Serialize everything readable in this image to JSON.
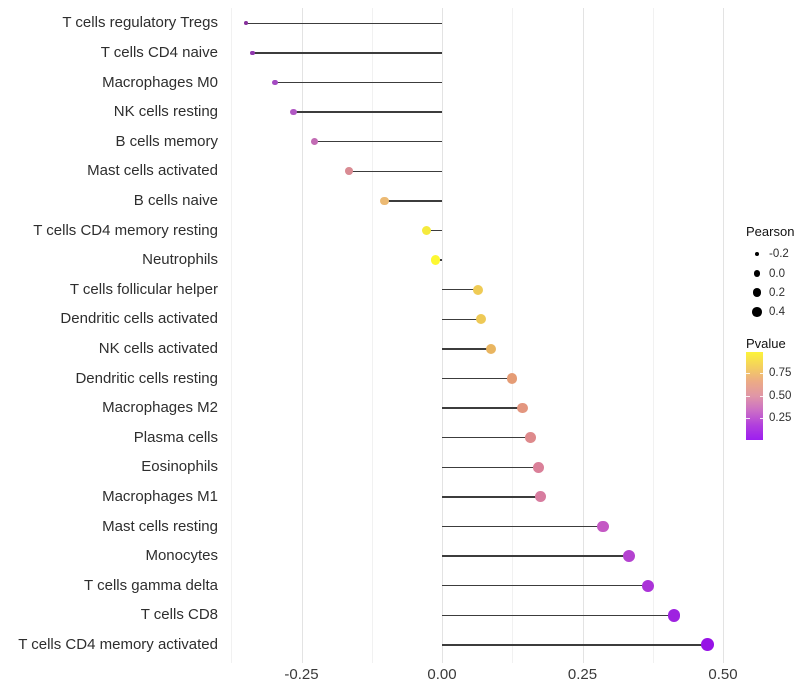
{
  "chart_data": {
    "type": "scatter",
    "subtype": "lollipop",
    "title": "",
    "xlabel": "",
    "ylabel": "",
    "grid": "on",
    "xlim": [
      -0.385,
      0.52
    ],
    "x_major_ticks": [
      -0.25,
      0.0,
      0.25,
      0.5
    ],
    "x_tick_labels": [
      "-0.25",
      "0.00",
      "0.25",
      "0.50"
    ],
    "x_minor_ticks": [
      -0.375,
      -0.125,
      0.125,
      0.375
    ],
    "categories": [
      "T cells regulatory  Tregs",
      "T cells CD4 naive",
      "Macrophages M0",
      "NK cells resting",
      "B cells memory",
      "Mast cells activated",
      "B cells naive",
      "T cells CD4 memory resting",
      "Neutrophils",
      "T cells follicular helper",
      "Dendritic cells activated",
      "NK cells activated",
      "Dendritic cells resting",
      "Macrophages M2",
      "Plasma cells",
      "Eosinophils",
      "Macrophages M1",
      "Mast cells resting",
      "Monocytes",
      "T cells gamma delta",
      "T cells CD8",
      "T cells CD4 memory activated"
    ],
    "series": [
      {
        "name": "Pearson",
        "values": [
          -0.349,
          -0.337,
          -0.297,
          -0.264,
          -0.227,
          -0.166,
          -0.102,
          -0.027,
          -0.012,
          0.064,
          0.07,
          0.087,
          0.125,
          0.143,
          0.157,
          0.171,
          0.175,
          0.286,
          0.332,
          0.366,
          0.413,
          0.472
        ]
      }
    ],
    "point_colors": [
      "#86309b",
      "#9038ae",
      "#a44ac2",
      "#b158c4",
      "#c26cb4",
      "#d98b93",
      "#ecba74",
      "#f5ea3d",
      "#fdf832",
      "#efcb55",
      "#eec956",
      "#e9b560",
      "#e59c75",
      "#e3967f",
      "#de8a8c",
      "#da8099",
      "#d77c9f",
      "#c458c4",
      "#b442d0",
      "#ab33d8",
      "#9e22e0",
      "#9712e6"
    ],
    "legend_position": "right"
  },
  "legend_pearson": {
    "title": "Pearson",
    "entries": [
      {
        "label": "-0.2",
        "value": -0.2
      },
      {
        "label": "0.0",
        "value": 0.0
      },
      {
        "label": "0.2",
        "value": 0.2
      },
      {
        "label": "0.4",
        "value": 0.4
      }
    ],
    "dot_color": "#000000"
  },
  "legend_pvalue": {
    "title": "Pvalue",
    "tick_labels": [
      "0.75",
      "0.50",
      "0.25"
    ],
    "tick_values": [
      0.75,
      0.5,
      0.25
    ],
    "range": [
      0.01,
      0.98
    ],
    "gradient_top_to_bottom": [
      "#fcf33b",
      "#f4d05e",
      "#ecab85",
      "#e096a7",
      "#cb6ec6",
      "#b13fdd",
      "#9d1ef0"
    ]
  },
  "colors": {
    "grid_major": "#e3e3e3",
    "grid_minor": "#f1f1f1",
    "stick": "#3c3c3c",
    "background": "#ffffff",
    "axis_text": "#3a3a3a"
  }
}
